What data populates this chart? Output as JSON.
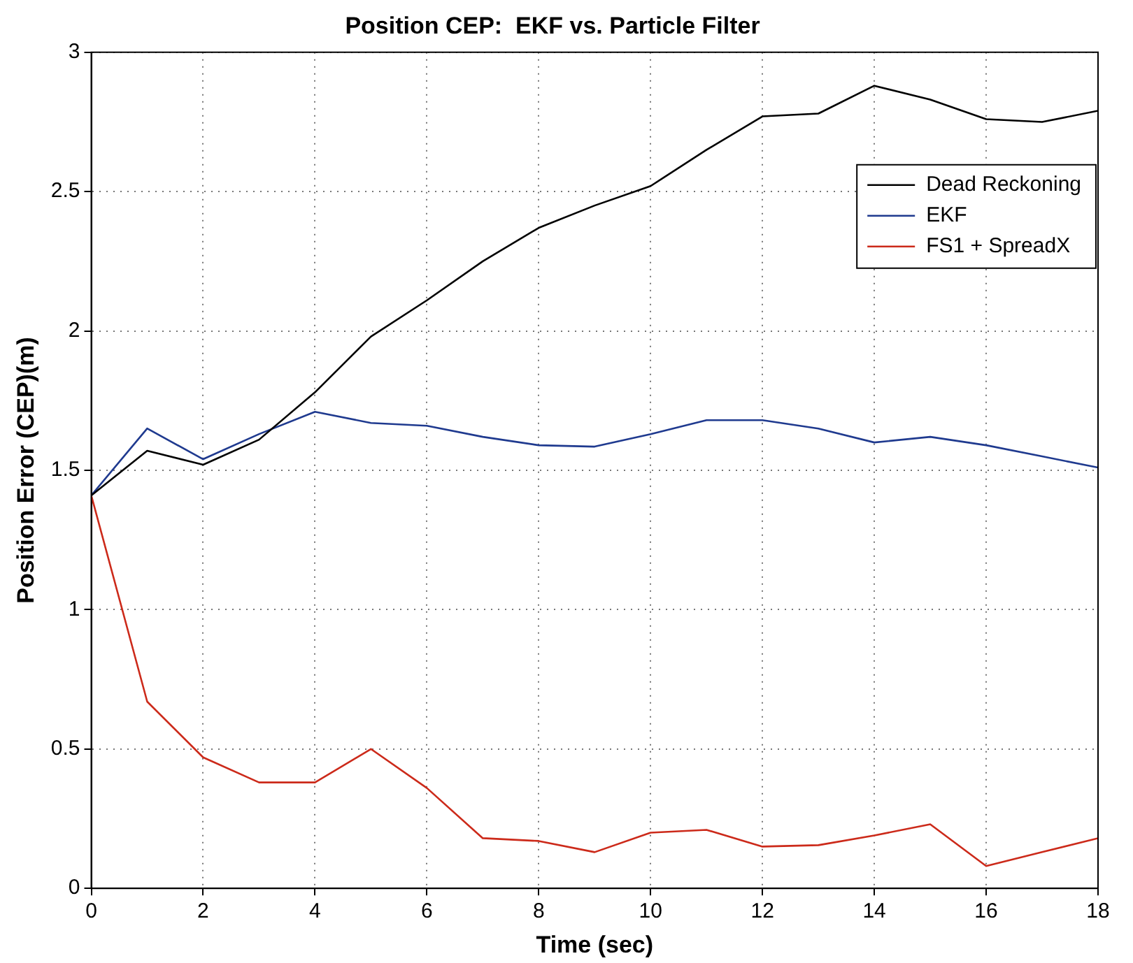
{
  "chart_data": {
    "type": "line",
    "title": "Position CEP:  EKF vs. Particle Filter",
    "xlabel": "Time (sec)",
    "ylabel": "Position Error (CEP)(m)",
    "x": [
      0,
      1,
      2,
      3,
      4,
      5,
      6,
      7,
      8,
      9,
      10,
      11,
      12,
      13,
      14,
      15,
      16,
      17,
      18
    ],
    "series": [
      {
        "name": "Dead Reckoning",
        "color": "#000000",
        "values": [
          1.41,
          1.57,
          1.52,
          1.61,
          1.78,
          1.98,
          2.11,
          2.25,
          2.37,
          2.45,
          2.52,
          2.65,
          2.77,
          2.78,
          2.88,
          2.83,
          2.76,
          2.75,
          2.79
        ]
      },
      {
        "name": "EKF",
        "color": "#1f3a8f",
        "values": [
          1.41,
          1.65,
          1.54,
          1.63,
          1.71,
          1.67,
          1.66,
          1.62,
          1.59,
          1.585,
          1.63,
          1.68,
          1.68,
          1.65,
          1.6,
          1.62,
          1.59,
          1.55,
          1.51
        ]
      },
      {
        "name": "FS1 + SpreadX",
        "color": "#cc2a1a",
        "values": [
          1.41,
          0.67,
          0.47,
          0.38,
          0.38,
          0.5,
          0.36,
          0.18,
          0.17,
          0.13,
          0.2,
          0.21,
          0.15,
          0.155,
          0.19,
          0.23,
          0.08,
          0.13,
          0.18
        ]
      }
    ],
    "xlim": [
      0,
      18
    ],
    "xticks": [
      0,
      2,
      4,
      6,
      8,
      10,
      12,
      14,
      16,
      18
    ],
    "ylim": [
      0,
      3
    ],
    "yticks": [
      0,
      0.5,
      1,
      1.5,
      2,
      2.5,
      3
    ],
    "grid": true,
    "legend": "top right",
    "marker": "none",
    "line_style": "solid"
  }
}
